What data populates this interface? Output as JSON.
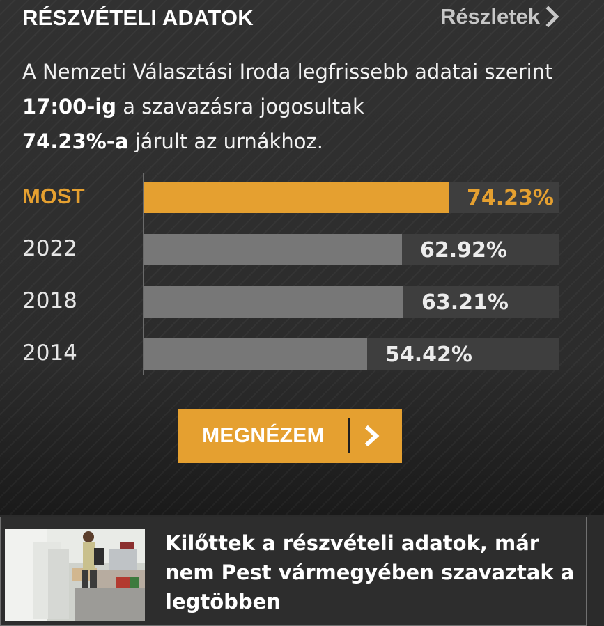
{
  "header": {
    "title": "RÉSZVÉTELI ADATOK",
    "details_link": "Részletek"
  },
  "lede": {
    "part1": "A Nemzeti Választási Iroda legfrissebb adatai szerint ",
    "time": "17:00-ig",
    "part2": " a szavazásra jogosultak ",
    "percent": "74.23%-a",
    "part3": " járult az urnákhoz."
  },
  "chart_data": {
    "type": "bar",
    "orientation": "horizontal",
    "categories": [
      "MOST",
      "2022",
      "2018",
      "2014"
    ],
    "values": [
      74.23,
      62.92,
      63.21,
      54.42
    ],
    "value_labels": [
      "74.23%",
      "62.92%",
      "63.21%",
      "54.42%"
    ],
    "xlim": [
      0,
      100
    ],
    "grid": true,
    "highlight_color": "#e5a030",
    "bar_color": "#777777",
    "track_color": "#3e3e3e"
  },
  "cta": {
    "label": "MEGNÉZEM",
    "icon": "chevron-right-icon"
  },
  "news": {
    "headline": "Kilőttek a részvételi adatok, már nem Pest vármegyében szavaztak a legtöbben",
    "thumbnail": "polling-station-photo"
  },
  "colors": {
    "accent": "#e5a030",
    "background": "#2b2b2b",
    "text": "#ffffff",
    "muted": "#c7c7c7"
  }
}
